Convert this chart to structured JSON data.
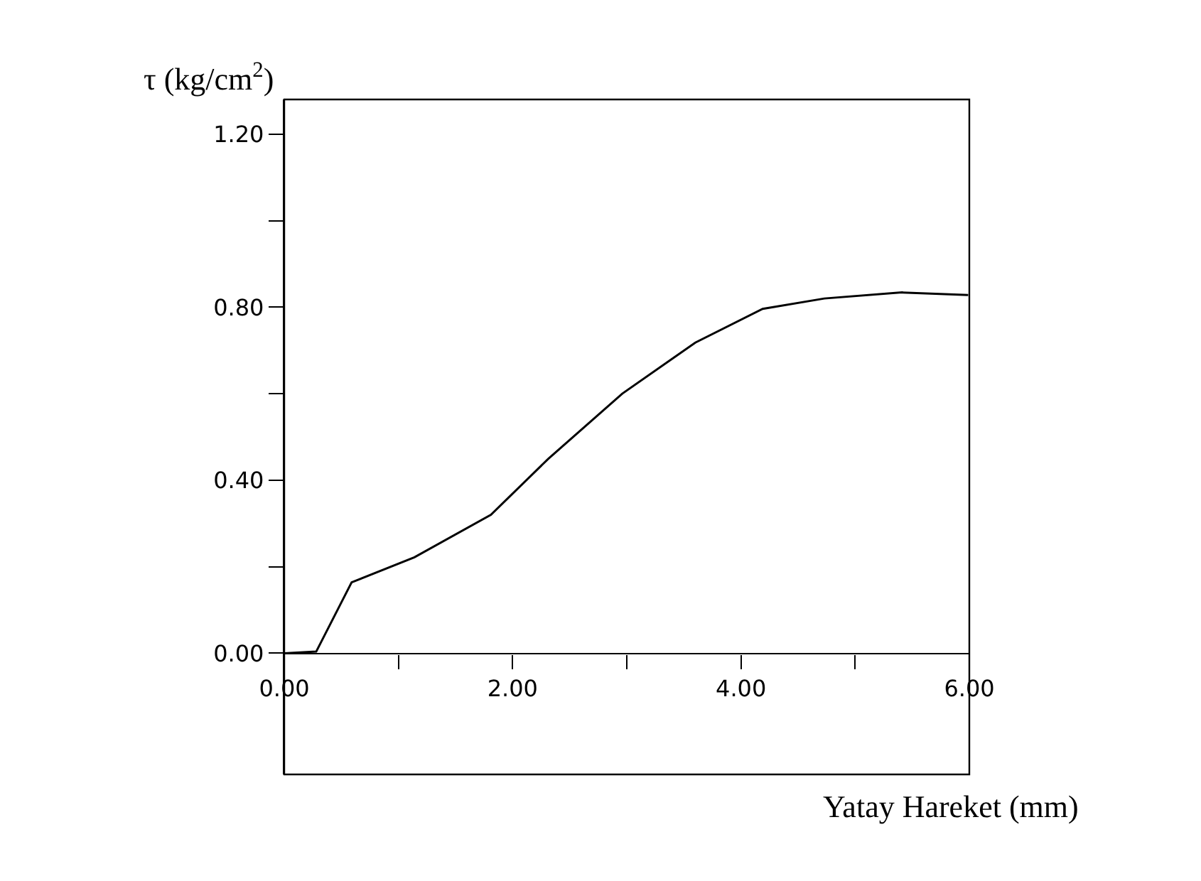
{
  "chart_data": {
    "type": "line",
    "ylabel": "τ (kg/cm$^{2}$)",
    "xlabel": "Yatay Hareket (mm)",
    "x": [
      0,
      0.28,
      0.59,
      1.14,
      1.81,
      2.31,
      2.96,
      3.6,
      4.19,
      4.73,
      5.41,
      5.99
    ],
    "series": [
      {
        "color": "#000000",
        "values": [
          0,
          0.004,
          0.164,
          0.222,
          0.32,
          0.449,
          0.6,
          0.718,
          0.796,
          0.82,
          0.834,
          0.828
        ]
      }
    ],
    "xlim": [
      0,
      6
    ],
    "ylim": [
      -0.28,
      1.28
    ],
    "xticks": [
      {
        "value": 0,
        "label": "0.00"
      },
      {
        "value": 1,
        "label": null
      },
      {
        "value": 2,
        "label": "2.00"
      },
      {
        "value": 3,
        "label": null
      },
      {
        "value": 4,
        "label": "4.00"
      },
      {
        "value": 5,
        "label": null
      },
      {
        "value": 6,
        "label": "6.00"
      }
    ],
    "yticks": [
      {
        "value": 0,
        "label": "0.00"
      },
      {
        "value": 0.2,
        "label": null
      },
      {
        "value": 0.4,
        "label": "0.40"
      },
      {
        "value": 0.6,
        "label": null
      },
      {
        "value": 0.8,
        "label": "0.80"
      },
      {
        "value": 1.0,
        "label": null
      },
      {
        "value": 1.2,
        "label": "1.20"
      }
    ],
    "legend": false,
    "marker": "none",
    "line_style": "solid"
  }
}
